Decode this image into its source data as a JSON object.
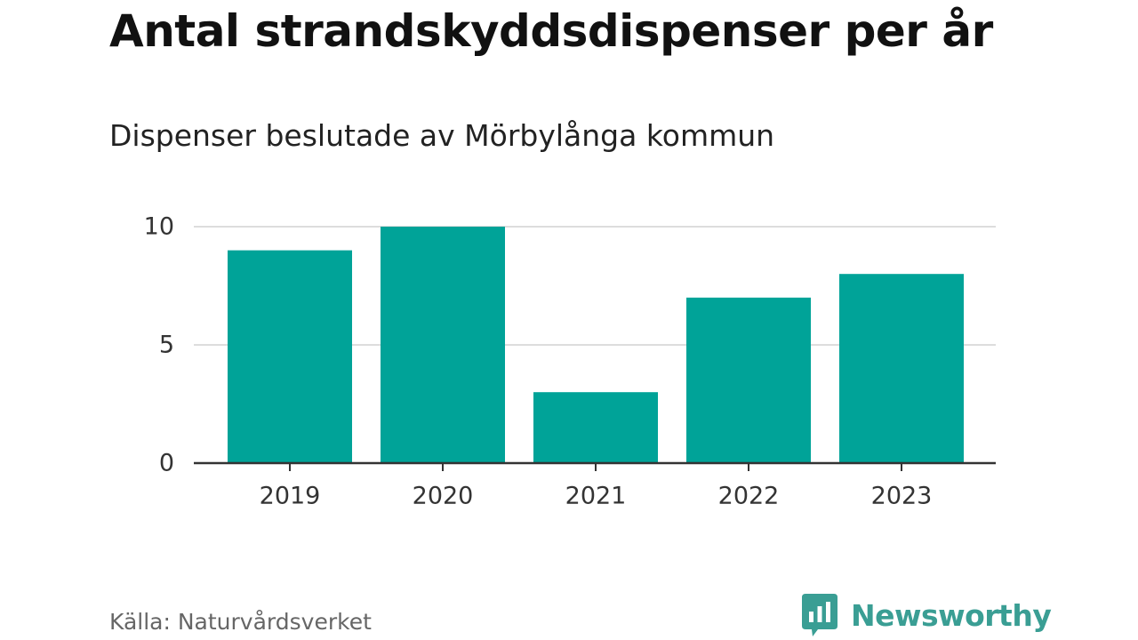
{
  "chart_data": {
    "type": "bar",
    "title": "Antal strandskyddsdispenser per år",
    "subtitle": "Dispenser beslutade av Mörbylånga kommun",
    "categories": [
      "2019",
      "2020",
      "2021",
      "2022",
      "2023"
    ],
    "values": [
      9,
      10,
      3,
      7,
      8
    ],
    "ylim": [
      0,
      10
    ],
    "yticks": [
      "0",
      "5",
      "10"
    ],
    "xlabel": "",
    "ylabel": "",
    "grid": true,
    "legend": "none",
    "bar_color": "#00a398"
  },
  "source": "Källa: Naturvårdsverket",
  "brand": {
    "name": "Newsworthy",
    "icon": "newsworthy-logo-icon",
    "color": "#3a9e94"
  }
}
